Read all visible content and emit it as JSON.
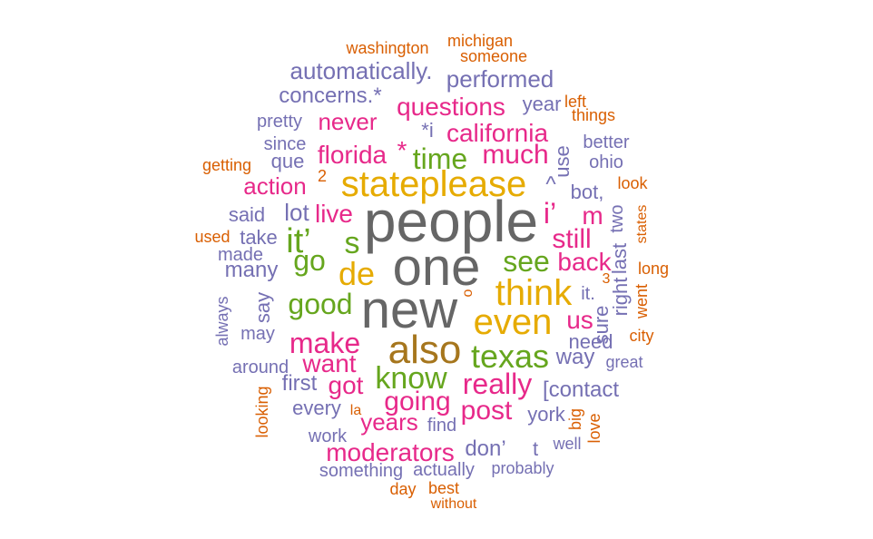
{
  "palette": {
    "gray": "#666666",
    "olive": "#A6761D",
    "gold": "#E6AB02",
    "green": "#66A61E",
    "pink": "#E7298A",
    "purple": "#7570B3",
    "orange": "#D95F02"
  },
  "words": [
    {
      "text": "people",
      "color": "gray"
    },
    {
      "text": "one",
      "color": "gray"
    },
    {
      "text": "new",
      "color": "gray"
    },
    {
      "text": "also",
      "color": "olive"
    },
    {
      "text": "stateplease",
      "color": "gold"
    },
    {
      "text": "think",
      "color": "gold"
    },
    {
      "text": "even",
      "color": "gold"
    },
    {
      "text": "de",
      "color": "gold"
    },
    {
      "text": "texas",
      "color": "green"
    },
    {
      "text": "know",
      "color": "green"
    },
    {
      "text": "time",
      "color": "green"
    },
    {
      "text": "it’",
      "color": "green"
    },
    {
      "text": "s",
      "color": "green"
    },
    {
      "text": "go",
      "color": "green"
    },
    {
      "text": "good",
      "color": "green"
    },
    {
      "text": "see",
      "color": "green"
    },
    {
      "text": "much",
      "color": "pink"
    },
    {
      "text": "california",
      "color": "pink"
    },
    {
      "text": "questions",
      "color": "pink"
    },
    {
      "text": "florida",
      "color": "pink"
    },
    {
      "text": "*",
      "color": "pink"
    },
    {
      "text": "never",
      "color": "pink"
    },
    {
      "text": "live",
      "color": "pink"
    },
    {
      "text": "action",
      "color": "pink"
    },
    {
      "text": "still",
      "color": "pink"
    },
    {
      "text": "back",
      "color": "pink"
    },
    {
      "text": "i’",
      "color": "pink"
    },
    {
      "text": "m",
      "color": "pink"
    },
    {
      "text": "make",
      "color": "pink"
    },
    {
      "text": "want",
      "color": "pink"
    },
    {
      "text": "us",
      "color": "pink"
    },
    {
      "text": "really",
      "color": "pink"
    },
    {
      "text": "going",
      "color": "pink"
    },
    {
      "text": "post",
      "color": "pink"
    },
    {
      "text": "got",
      "color": "pink"
    },
    {
      "text": "years",
      "color": "pink"
    },
    {
      "text": "moderators",
      "color": "pink"
    },
    {
      "text": "automatically.",
      "color": "purple"
    },
    {
      "text": "performed",
      "color": "purple"
    },
    {
      "text": "concerns.*",
      "color": "purple"
    },
    {
      "text": "pretty",
      "color": "purple"
    },
    {
      "text": "since",
      "color": "purple"
    },
    {
      "text": "que",
      "color": "purple"
    },
    {
      "text": "year",
      "color": "purple"
    },
    {
      "text": "*i",
      "color": "purple"
    },
    {
      "text": "better",
      "color": "purple"
    },
    {
      "text": "ohio",
      "color": "purple"
    },
    {
      "text": "use",
      "color": "purple"
    },
    {
      "text": "^",
      "color": "purple"
    },
    {
      "text": "bot,",
      "color": "purple"
    },
    {
      "text": "said",
      "color": "purple"
    },
    {
      "text": "lot",
      "color": "purple"
    },
    {
      "text": "take",
      "color": "purple"
    },
    {
      "text": "made",
      "color": "purple"
    },
    {
      "text": "many",
      "color": "purple"
    },
    {
      "text": "two",
      "color": "purple"
    },
    {
      "text": "last",
      "color": "purple"
    },
    {
      "text": "right",
      "color": "purple"
    },
    {
      "text": "sure",
      "color": "purple"
    },
    {
      "text": "it.",
      "color": "purple"
    },
    {
      "text": "say",
      "color": "purple"
    },
    {
      "text": "always",
      "color": "purple"
    },
    {
      "text": "may",
      "color": "purple"
    },
    {
      "text": "around",
      "color": "purple"
    },
    {
      "text": "need",
      "color": "purple"
    },
    {
      "text": "way",
      "color": "purple"
    },
    {
      "text": "great",
      "color": "purple"
    },
    {
      "text": "first",
      "color": "purple"
    },
    {
      "text": "[contact",
      "color": "purple"
    },
    {
      "text": "every",
      "color": "purple"
    },
    {
      "text": "find",
      "color": "purple"
    },
    {
      "text": "york",
      "color": "purple"
    },
    {
      "text": "work",
      "color": "purple"
    },
    {
      "text": "don’",
      "color": "purple"
    },
    {
      "text": "t",
      "color": "purple"
    },
    {
      "text": "well",
      "color": "purple"
    },
    {
      "text": "something",
      "color": "purple"
    },
    {
      "text": "actually",
      "color": "purple"
    },
    {
      "text": "probably",
      "color": "purple"
    },
    {
      "text": "washington",
      "color": "orange"
    },
    {
      "text": "michigan",
      "color": "orange"
    },
    {
      "text": "someone",
      "color": "orange"
    },
    {
      "text": "left",
      "color": "orange"
    },
    {
      "text": "things",
      "color": "orange"
    },
    {
      "text": "getting",
      "color": "orange"
    },
    {
      "text": "2",
      "color": "orange"
    },
    {
      "text": "look",
      "color": "orange"
    },
    {
      "text": "states",
      "color": "orange"
    },
    {
      "text": "used",
      "color": "orange"
    },
    {
      "text": "long",
      "color": "orange"
    },
    {
      "text": "3",
      "color": "orange"
    },
    {
      "text": "o",
      "color": "orange"
    },
    {
      "text": "went",
      "color": "orange"
    },
    {
      "text": "city",
      "color": "orange"
    },
    {
      "text": "looking",
      "color": "orange"
    },
    {
      "text": "la",
      "color": "orange"
    },
    {
      "text": "big",
      "color": "orange"
    },
    {
      "text": "love",
      "color": "orange"
    },
    {
      "text": "day",
      "color": "orange"
    },
    {
      "text": "best",
      "color": "orange"
    },
    {
      "text": "without",
      "color": "orange"
    }
  ]
}
